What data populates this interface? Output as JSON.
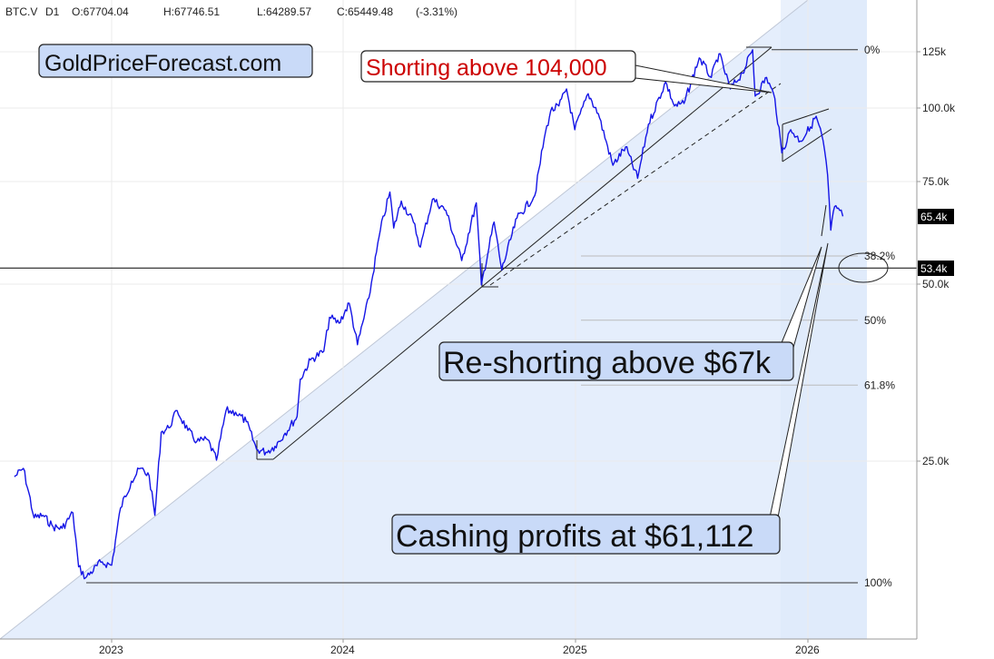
{
  "header": {
    "symbol": "BTC.V",
    "timeframe": "D1",
    "open": "O:67704.04",
    "high": "H:67746.51",
    "low": "L:64289.57",
    "close": "C:65449.48",
    "change": "(-3.31%)"
  },
  "watermark": "GoldPriceForecast.com",
  "annotations": {
    "shorting": "Shorting above 104,000",
    "reshorting": "Re-shorting above $67k",
    "cashing": "Cashing profits at $61,112"
  },
  "price_labels": {
    "last": "65.4k",
    "level": "53.4k"
  },
  "colors": {
    "price": "#1414e6",
    "accent_text": "#cc0000",
    "box_fill": "#c9daf8",
    "shade": "#dce8fb"
  },
  "chart_data": {
    "type": "line",
    "title": "",
    "y_scale": "log",
    "ylim": [
      11000,
      200000
    ],
    "xlim": [
      "2022-08-01",
      "2026-04-15"
    ],
    "x_ticks": [
      "2023",
      "2024",
      "2025",
      "2026"
    ],
    "y_ticks": [
      "125k",
      "100.0k",
      "75.0k",
      "50.0k",
      "25.0k"
    ],
    "fib_levels": [
      {
        "label": "0%",
        "price": 126000
      },
      {
        "label": "38.2%",
        "price": 56000
      },
      {
        "label": "50%",
        "price": 43500
      },
      {
        "label": "61.8%",
        "price": 33700
      },
      {
        "label": "100%",
        "price": 15500
      }
    ],
    "horizontal_line": 53400,
    "series": [
      {
        "values": [
          [
            "2022-08-01",
            23500
          ],
          [
            "2022-08-15",
            24300
          ],
          [
            "2022-09-01",
            20000
          ],
          [
            "2022-09-15",
            20200
          ],
          [
            "2022-10-01",
            19300
          ],
          [
            "2022-10-15",
            19200
          ],
          [
            "2022-11-01",
            20400
          ],
          [
            "2022-11-10",
            16500
          ],
          [
            "2022-11-21",
            15800
          ],
          [
            "2022-12-15",
            16800
          ],
          [
            "2023-01-01",
            16600
          ],
          [
            "2023-01-15",
            20800
          ],
          [
            "2023-02-01",
            23100
          ],
          [
            "2023-02-15",
            24300
          ],
          [
            "2023-03-01",
            23600
          ],
          [
            "2023-03-10",
            20200
          ],
          [
            "2023-03-20",
            28000
          ],
          [
            "2023-04-01",
            28500
          ],
          [
            "2023-04-14",
            30500
          ],
          [
            "2023-05-01",
            28200
          ],
          [
            "2023-05-15",
            27000
          ],
          [
            "2023-06-01",
            27200
          ],
          [
            "2023-06-15",
            25100
          ],
          [
            "2023-06-30",
            30500
          ],
          [
            "2023-07-15",
            30300
          ],
          [
            "2023-08-01",
            29200
          ],
          [
            "2023-08-17",
            26200
          ],
          [
            "2023-09-01",
            25900
          ],
          [
            "2023-09-15",
            26500
          ],
          [
            "2023-10-01",
            27900
          ],
          [
            "2023-10-20",
            29800
          ],
          [
            "2023-10-25",
            34500
          ],
          [
            "2023-11-10",
            37200
          ],
          [
            "2023-12-01",
            38500
          ],
          [
            "2023-12-10",
            44000
          ],
          [
            "2023-12-25",
            43000
          ],
          [
            "2024-01-10",
            46500
          ],
          [
            "2024-01-23",
            39500
          ],
          [
            "2024-02-10",
            47500
          ],
          [
            "2024-02-28",
            62000
          ],
          [
            "2024-03-14",
            72000
          ],
          [
            "2024-03-20",
            62500
          ],
          [
            "2024-04-01",
            69500
          ],
          [
            "2024-04-20",
            64000
          ],
          [
            "2024-05-01",
            58000
          ],
          [
            "2024-05-20",
            70000
          ],
          [
            "2024-06-10",
            67000
          ],
          [
            "2024-07-05",
            55000
          ],
          [
            "2024-07-28",
            69000
          ],
          [
            "2024-08-05",
            50000
          ],
          [
            "2024-08-25",
            64000
          ],
          [
            "2024-09-06",
            53000
          ],
          [
            "2024-09-30",
            65000
          ],
          [
            "2024-10-28",
            71000
          ],
          [
            "2024-11-12",
            89000
          ],
          [
            "2024-11-22",
            99000
          ],
          [
            "2024-12-05",
            101000
          ],
          [
            "2024-12-17",
            108000
          ],
          [
            "2024-12-30",
            92000
          ],
          [
            "2025-01-20",
            106000
          ],
          [
            "2025-02-05",
            98000
          ],
          [
            "2025-02-28",
            80000
          ],
          [
            "2025-03-20",
            86000
          ],
          [
            "2025-04-08",
            76000
          ],
          [
            "2025-04-25",
            94000
          ],
          [
            "2025-05-22",
            111000
          ],
          [
            "2025-06-05",
            101000
          ],
          [
            "2025-06-20",
            102000
          ],
          [
            "2025-07-14",
            122000
          ],
          [
            "2025-08-02",
            113000
          ],
          [
            "2025-08-14",
            124000
          ],
          [
            "2025-09-01",
            108000
          ],
          [
            "2025-09-20",
            115000
          ],
          [
            "2025-10-06",
            126000
          ],
          [
            "2025-10-10",
            105000
          ],
          [
            "2025-10-28",
            113000
          ],
          [
            "2025-11-10",
            104000
          ],
          [
            "2025-11-21",
            84000
          ],
          [
            "2025-12-05",
            92000
          ],
          [
            "2025-12-20",
            88000
          ],
          [
            "2026-01-05",
            93000
          ],
          [
            "2026-01-14",
            97000
          ],
          [
            "2026-01-25",
            88000
          ],
          [
            "2026-02-01",
            77000
          ],
          [
            "2026-02-06",
            62000
          ],
          [
            "2026-02-12",
            68000
          ],
          [
            "2026-02-20",
            67000
          ],
          [
            "2026-02-25",
            65449
          ]
        ]
      }
    ]
  }
}
